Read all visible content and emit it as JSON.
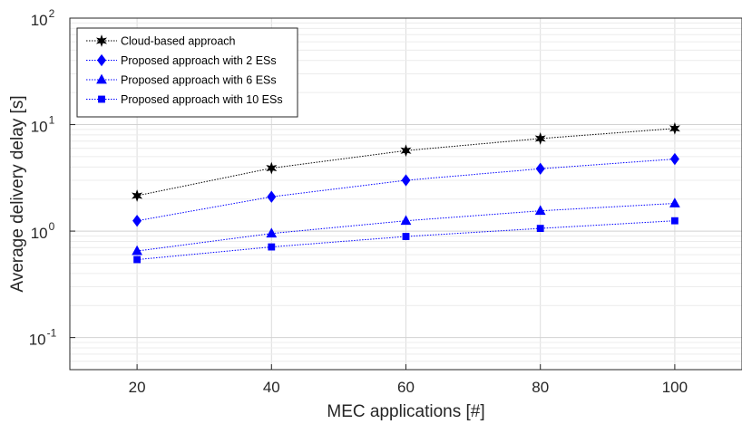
{
  "chart_data": {
    "type": "line",
    "title": "",
    "xlabel": "MEC applications [#]",
    "ylabel": "Average delivery delay [s]",
    "x": [
      20,
      40,
      60,
      80,
      100
    ],
    "xlim": [
      10,
      110
    ],
    "xticks": [
      20,
      40,
      60,
      80,
      100
    ],
    "ylim": [
      0.05,
      100
    ],
    "yscale": "log",
    "yticks": [
      {
        "base": "10",
        "exp": "-1",
        "value": 0.1
      },
      {
        "base": "10",
        "exp": "0",
        "value": 1
      },
      {
        "base": "10",
        "exp": "1",
        "value": 10
      },
      {
        "base": "10",
        "exp": "2",
        "value": 100
      }
    ],
    "grid": true,
    "legend_position": "top-left",
    "series": [
      {
        "name": "Cloud-based approach",
        "color": "#000000",
        "marker": "star",
        "linestyle": "dotted",
        "values": [
          2.15,
          3.9,
          5.7,
          7.4,
          9.2
        ]
      },
      {
        "name": "Proposed approach with 2 ESs",
        "color": "#0000ff",
        "marker": "diamond",
        "linestyle": "dotted",
        "values": [
          1.25,
          2.1,
          3.0,
          3.85,
          4.75
        ]
      },
      {
        "name": "Proposed approach with 6 ESs",
        "color": "#0000ff",
        "marker": "triangle",
        "linestyle": "dotted",
        "values": [
          0.65,
          0.95,
          1.25,
          1.55,
          1.82
        ]
      },
      {
        "name": "Proposed approach with 10 ESs",
        "color": "#0000ff",
        "marker": "square",
        "linestyle": "dotted",
        "values": [
          0.54,
          0.71,
          0.89,
          1.06,
          1.25
        ]
      }
    ]
  }
}
